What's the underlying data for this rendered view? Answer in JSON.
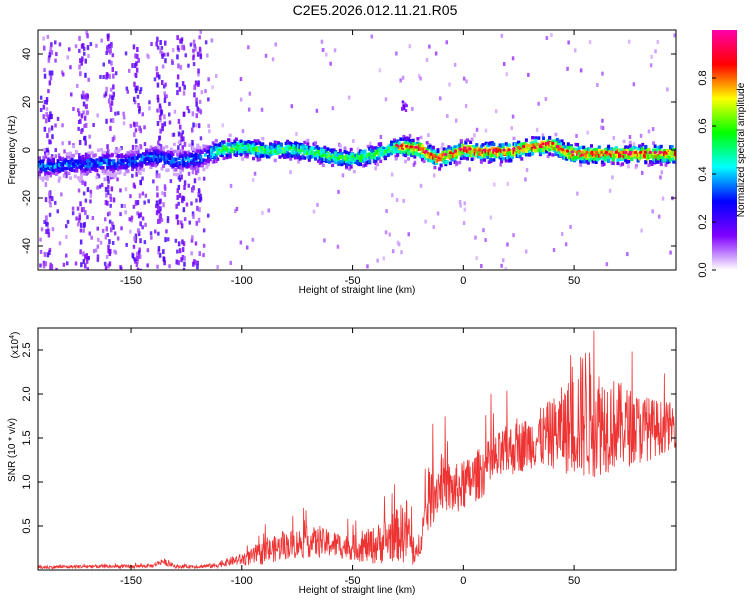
{
  "title": "C2E5.2026.012.11.21.R05",
  "chart_data": [
    {
      "type": "heatmap",
      "xlabel": "Height of straight line (km)",
      "ylabel": "Frequency (Hz)",
      "xlim": [
        -192,
        96
      ],
      "ylim": [
        -50,
        50
      ],
      "xticks": [
        -150,
        -100,
        -50,
        0,
        50
      ],
      "xtick_labels": [
        "-150",
        "-100",
        "-50",
        "0",
        "50"
      ],
      "yticks": [
        -40,
        -20,
        0,
        20,
        40
      ],
      "ytick_labels": [
        "-40",
        "-20",
        "0",
        "20",
        "40"
      ],
      "ridge": {
        "x": [
          -190,
          -170,
          -150,
          -140,
          -130,
          -120,
          -110,
          -100,
          -90,
          -80,
          -70,
          -60,
          -50,
          -40,
          -30,
          -20,
          -12,
          -5,
          0,
          5,
          10,
          20,
          30,
          40,
          45,
          50,
          60,
          70,
          80,
          96
        ],
        "y": [
          -6,
          -5,
          -4,
          -2,
          -4,
          -3,
          1,
          2,
          0,
          1,
          0,
          -2,
          -3,
          -1,
          2,
          1,
          -3,
          -1,
          1,
          0,
          0,
          0,
          2,
          3,
          0,
          -1,
          -1,
          -1,
          -1,
          -1
        ]
      },
      "colorbar": {
        "label": "Normalized spectral amplitude",
        "range": [
          0,
          1
        ],
        "ticks": [
          0.0,
          0.2,
          0.4,
          0.6,
          0.8
        ],
        "tick_labels": [
          "0.0",
          "0.2",
          "0.4",
          "0.6",
          "0.8"
        ],
        "colors": [
          "#ffffff",
          "#7f00ff",
          "#0000ff",
          "#00ffff",
          "#00ff00",
          "#ffff00",
          "#ff0000",
          "#ff00aa"
        ]
      }
    },
    {
      "type": "line",
      "xlabel": "Height of straight line (km)",
      "ylabel": "SNR (10 * v/v)",
      "scale_label": "(x10",
      "scale_exponent": "4",
      "scale_close": ")",
      "xlim": [
        -192,
        96
      ],
      "ylim": [
        0,
        2.75
      ],
      "xticks": [
        -150,
        -100,
        -50,
        0,
        50
      ],
      "xtick_labels": [
        "-150",
        "-100",
        "-50",
        "0",
        "50"
      ],
      "yticks": [
        0.5,
        1.0,
        1.5,
        2.0,
        2.5
      ],
      "ytick_labels": [
        "0.5",
        "1.0",
        "1.5",
        "2.0",
        "2.5"
      ],
      "series": [
        {
          "name": "SNR",
          "color": "#ee3333",
          "x": [
            -192,
            -170,
            -150,
            -140,
            -136,
            -130,
            -120,
            -112,
            -105,
            -100,
            -95,
            -90,
            -80,
            -70,
            -60,
            -50,
            -40,
            -30,
            -25,
            -22,
            -15,
            -10,
            -5,
            0,
            10,
            20,
            30,
            40,
            50,
            55,
            60,
            70,
            80,
            90,
            96
          ],
          "mean": [
            0.03,
            0.04,
            0.04,
            0.05,
            0.1,
            0.04,
            0.04,
            0.05,
            0.1,
            0.12,
            0.15,
            0.2,
            0.28,
            0.32,
            0.3,
            0.25,
            0.28,
            0.4,
            0.45,
            0.1,
            0.8,
            1.0,
            0.9,
            0.95,
            1.15,
            1.35,
            1.45,
            1.55,
            1.65,
            1.8,
            1.7,
            1.65,
            1.6,
            1.62,
            1.65
          ],
          "amp": [
            0.02,
            0.02,
            0.02,
            0.02,
            0.04,
            0.02,
            0.02,
            0.03,
            0.05,
            0.07,
            0.1,
            0.14,
            0.16,
            0.18,
            0.16,
            0.14,
            0.22,
            0.3,
            0.4,
            0.08,
            0.35,
            0.3,
            0.3,
            0.28,
            0.3,
            0.3,
            0.3,
            0.4,
            0.6,
            0.8,
            0.65,
            0.5,
            0.4,
            0.3,
            0.25
          ]
        }
      ]
    }
  ]
}
